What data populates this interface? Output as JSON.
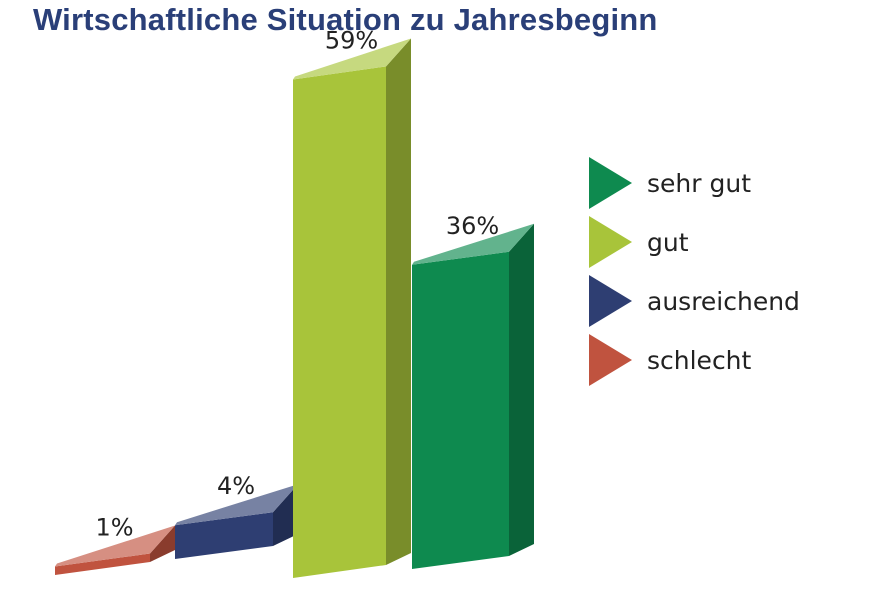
{
  "chart_data": {
    "type": "bar",
    "title": "Wirtschaftliche Situation zu Jahresbeginn",
    "categories": [
      "schlecht",
      "ausreichend",
      "gut",
      "sehr gut"
    ],
    "values": [
      1,
      4,
      59,
      36
    ],
    "data_labels": [
      "1%",
      "4%",
      "59%",
      "36%"
    ],
    "unit": "%",
    "grid": false,
    "legend": {
      "position": "right",
      "items": [
        "sehr gut",
        "gut",
        "ausreichend",
        "schlecht"
      ]
    },
    "colors": {
      "title": "#2a3f78",
      "sehr gut": "#0e8a4f",
      "gut": "#a8c43a",
      "ausreichend": "#2e3e72",
      "schlecht": "#c0533f"
    }
  }
}
